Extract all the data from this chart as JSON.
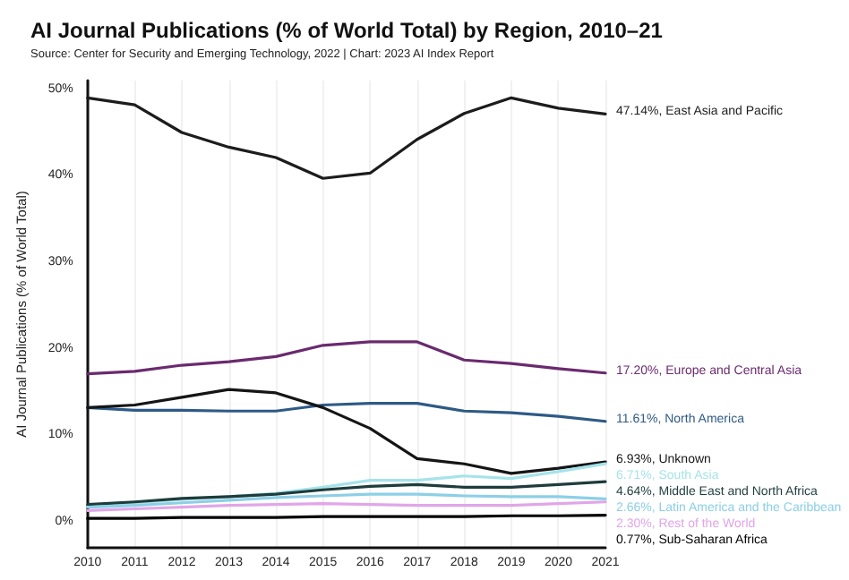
{
  "chart_data": {
    "type": "line",
    "title": "AI Journal Publications (% of World Total) by Region, 2010–21",
    "subtitle": "Source: Center for Security and Emerging Technology, 2022 | Chart: 2023 AI Index Report",
    "ylabel": "AI Journal Publications (% of World Total)",
    "categories": [
      "2010",
      "2011",
      "2012",
      "2013",
      "2014",
      "2015",
      "2016",
      "2017",
      "2018",
      "2019",
      "2020",
      "2021"
    ],
    "ylim": [
      -3,
      51
    ],
    "yticks": [
      {
        "value": 0,
        "label": "0%"
      },
      {
        "value": 10,
        "label": "10%"
      },
      {
        "value": 20,
        "label": "20%"
      },
      {
        "value": 30,
        "label": "30%"
      },
      {
        "value": 40,
        "label": "40%"
      },
      {
        "value": 50,
        "label": "50%"
      }
    ],
    "grid": "x",
    "legend": false,
    "marker": "none",
    "line_style": "solid",
    "series": [
      {
        "name": "East Asia and Pacific",
        "color": "#1c1c1c",
        "values": [
          49.0,
          48.2,
          45.0,
          43.3,
          42.1,
          39.7,
          40.3,
          44.2,
          47.2,
          49.0,
          47.8,
          47.14
        ],
        "value_labels": [
          null,
          null,
          null,
          null,
          null,
          null,
          null,
          null,
          null,
          null,
          null,
          "47.14%,"
        ]
      },
      {
        "name": "Europe and Central Asia",
        "color": "#6a2a6e",
        "values": [
          17.1,
          17.4,
          18.1,
          18.5,
          19.1,
          20.4,
          20.8,
          20.8,
          18.7,
          18.3,
          17.7,
          17.2
        ],
        "value_labels": [
          null,
          null,
          null,
          null,
          null,
          null,
          null,
          null,
          null,
          null,
          null,
          "17.20%,"
        ]
      },
      {
        "name": "North America",
        "color": "#2e5a86",
        "values": [
          13.2,
          12.9,
          12.9,
          12.8,
          12.8,
          13.5,
          13.7,
          13.7,
          12.8,
          12.6,
          12.2,
          11.61
        ],
        "value_labels": [
          null,
          null,
          null,
          null,
          null,
          null,
          null,
          null,
          null,
          null,
          null,
          "11.61%,"
        ]
      },
      {
        "name": "Unknown",
        "color": "#151515",
        "values": [
          13.2,
          13.5,
          14.4,
          15.3,
          14.9,
          13.2,
          10.8,
          7.3,
          6.7,
          5.6,
          6.2,
          6.93
        ],
        "value_labels": [
          null,
          null,
          null,
          null,
          null,
          null,
          null,
          null,
          null,
          null,
          null,
          "6.93%,"
        ]
      },
      {
        "name": "South Asia",
        "color": "#a6e3ea",
        "values": [
          1.8,
          2.2,
          2.6,
          2.9,
          3.3,
          4.0,
          4.8,
          4.8,
          5.3,
          5.0,
          5.8,
          6.71
        ],
        "value_labels": [
          null,
          null,
          null,
          null,
          null,
          null,
          null,
          null,
          null,
          null,
          null,
          "6.71%,"
        ]
      },
      {
        "name": "Middle East and North Africa",
        "color": "#1e3c3c",
        "values": [
          2.0,
          2.3,
          2.7,
          2.9,
          3.2,
          3.7,
          4.1,
          4.3,
          4.0,
          4.0,
          4.3,
          4.64
        ],
        "value_labels": [
          null,
          null,
          null,
          null,
          null,
          null,
          null,
          null,
          null,
          null,
          null,
          "4.64%,"
        ]
      },
      {
        "name": "Latin America and the Caribbean",
        "color": "#8ccfe6",
        "values": [
          1.7,
          1.9,
          2.2,
          2.5,
          2.8,
          3.0,
          3.2,
          3.2,
          3.0,
          2.9,
          2.9,
          2.66
        ],
        "value_labels": [
          null,
          null,
          null,
          null,
          null,
          null,
          null,
          null,
          null,
          null,
          null,
          "2.66%,"
        ]
      },
      {
        "name": "Rest of the World",
        "color": "#e0a6e8",
        "values": [
          1.3,
          1.5,
          1.7,
          1.9,
          2.0,
          2.1,
          2.0,
          1.9,
          1.9,
          1.9,
          2.1,
          2.3
        ],
        "value_labels": [
          null,
          null,
          null,
          null,
          null,
          null,
          null,
          null,
          null,
          null,
          null,
          "2.30%,"
        ]
      },
      {
        "name": "Sub-Saharan Africa",
        "color": "#000000",
        "values": [
          0.4,
          0.4,
          0.5,
          0.5,
          0.5,
          0.6,
          0.6,
          0.6,
          0.6,
          0.7,
          0.7,
          0.77
        ],
        "value_labels": [
          null,
          null,
          null,
          null,
          null,
          null,
          null,
          null,
          null,
          null,
          null,
          "0.77%,"
        ]
      }
    ]
  }
}
